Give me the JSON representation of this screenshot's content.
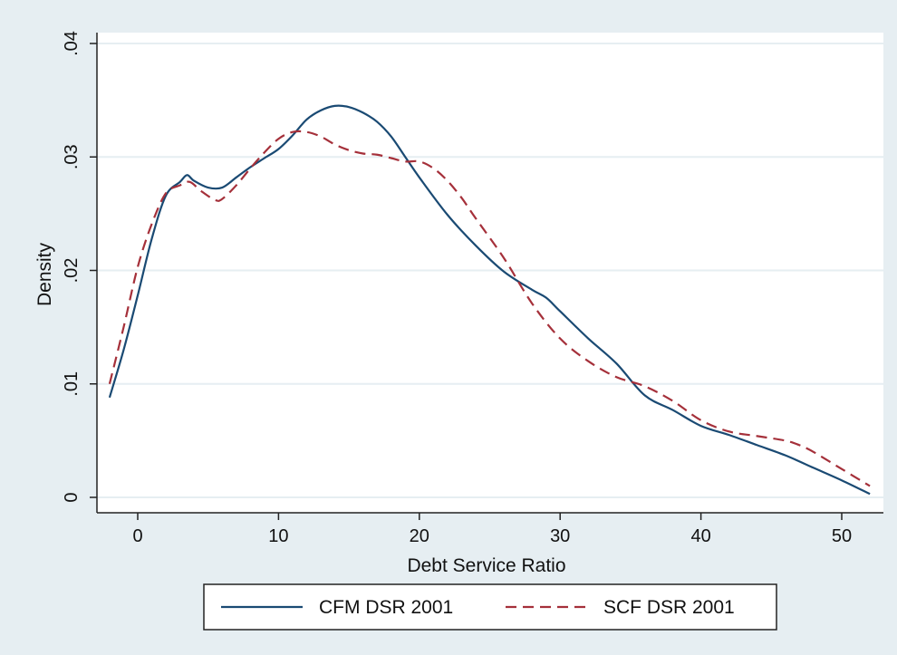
{
  "chart_data": {
    "type": "line",
    "title": "",
    "xlabel": "Debt Service Ratio",
    "ylabel": "Density",
    "xlim": [
      -2,
      52
    ],
    "ylim": [
      0,
      0.04
    ],
    "x_ticks": [
      0,
      10,
      20,
      30,
      40,
      50
    ],
    "x_tick_labels": [
      "0",
      "10",
      "20",
      "30",
      "40",
      "50"
    ],
    "y_ticks": [
      0,
      0.01,
      0.02,
      0.03,
      0.04
    ],
    "y_tick_labels": [
      "0",
      ".01",
      ".02",
      ".03",
      ".04"
    ],
    "grid": true,
    "legend_position": "bottom",
    "colors": {
      "outer_background": "#e6eef2",
      "plot_background": "#ffffff",
      "grid": "#e6eef2",
      "cfm": "#1a4a73",
      "scf": "#a5303a"
    },
    "series": [
      {
        "name": "CFM DSR 2001",
        "style": "solid",
        "color": "#1a4a73",
        "points": [
          [
            -2,
            0.0088
          ],
          [
            -1,
            0.013
          ],
          [
            0,
            0.0178
          ],
          [
            1,
            0.0228
          ],
          [
            2,
            0.0266
          ],
          [
            3,
            0.0278
          ],
          [
            3.5,
            0.0284
          ],
          [
            4,
            0.0279
          ],
          [
            5,
            0.0273
          ],
          [
            6,
            0.0273
          ],
          [
            7,
            0.0282
          ],
          [
            8,
            0.0291
          ],
          [
            9,
            0.0299
          ],
          [
            10,
            0.0307
          ],
          [
            11,
            0.0319
          ],
          [
            12,
            0.0333
          ],
          [
            13,
            0.0341
          ],
          [
            14,
            0.0345
          ],
          [
            15,
            0.0344
          ],
          [
            16,
            0.0339
          ],
          [
            17,
            0.0331
          ],
          [
            18,
            0.0318
          ],
          [
            19,
            0.03
          ],
          [
            20,
            0.0282
          ],
          [
            22,
            0.0249
          ],
          [
            24,
            0.0222
          ],
          [
            26,
            0.0199
          ],
          [
            28,
            0.0183
          ],
          [
            29,
            0.0176
          ],
          [
            30,
            0.0164
          ],
          [
            32,
            0.014
          ],
          [
            34,
            0.0118
          ],
          [
            36,
            0.009
          ],
          [
            38,
            0.0077
          ],
          [
            40,
            0.0063
          ],
          [
            42,
            0.0055
          ],
          [
            44,
            0.0046
          ],
          [
            46,
            0.0037
          ],
          [
            48,
            0.0026
          ],
          [
            50,
            0.0015
          ],
          [
            52,
            0.0003
          ]
        ]
      },
      {
        "name": "SCF DSR 2001",
        "style": "dashed",
        "color": "#a5303a",
        "points": [
          [
            -2,
            0.01
          ],
          [
            -1,
            0.015
          ],
          [
            0,
            0.0203
          ],
          [
            1,
            0.0241
          ],
          [
            2,
            0.0268
          ],
          [
            3,
            0.0275
          ],
          [
            3.7,
            0.0278
          ],
          [
            4.5,
            0.027
          ],
          [
            5.5,
            0.0262
          ],
          [
            6,
            0.0263
          ],
          [
            7,
            0.0275
          ],
          [
            8,
            0.029
          ],
          [
            9,
            0.0304
          ],
          [
            10,
            0.0316
          ],
          [
            11,
            0.0322
          ],
          [
            12,
            0.0322
          ],
          [
            13,
            0.0318
          ],
          [
            14,
            0.0311
          ],
          [
            15,
            0.0306
          ],
          [
            16,
            0.0303
          ],
          [
            17,
            0.0302
          ],
          [
            18,
            0.0299
          ],
          [
            19,
            0.0296
          ],
          [
            20,
            0.0296
          ],
          [
            21,
            0.029
          ],
          [
            22,
            0.0279
          ],
          [
            23,
            0.0264
          ],
          [
            24,
            0.0246
          ],
          [
            26,
            0.0211
          ],
          [
            28,
            0.0171
          ],
          [
            30,
            0.014
          ],
          [
            32,
            0.012
          ],
          [
            34,
            0.0106
          ],
          [
            36,
            0.0098
          ],
          [
            38,
            0.0085
          ],
          [
            40,
            0.0068
          ],
          [
            42,
            0.0058
          ],
          [
            44,
            0.0054
          ],
          [
            46,
            0.005
          ],
          [
            47,
            0.0046
          ],
          [
            48,
            0.004
          ],
          [
            50,
            0.0025
          ],
          [
            52,
            0.001
          ]
        ]
      }
    ]
  },
  "legend": {
    "items": [
      {
        "label": "CFM DSR 2001"
      },
      {
        "label": "SCF DSR 2001"
      }
    ]
  }
}
